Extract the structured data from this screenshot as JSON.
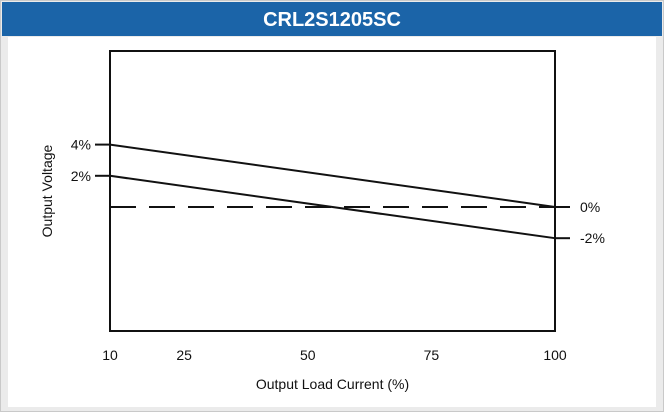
{
  "chart_data": {
    "type": "line",
    "title": "CRL2S1205SC",
    "xlabel": "Output Load Current (%)",
    "ylabel": "Output Voltage",
    "x_ticks": [
      10,
      25,
      50,
      75,
      100
    ],
    "xlim": [
      10,
      100
    ],
    "y_ticks_left": [
      {
        "label": "4%",
        "value": 4
      },
      {
        "label": "2%",
        "value": 2
      }
    ],
    "y_ticks_right": [
      {
        "label": "0%",
        "value": 0
      },
      {
        "label": "-2%",
        "value": -2
      }
    ],
    "ylim": [
      -7.95,
      10
    ],
    "series": [
      {
        "x": [
          10,
          100
        ],
        "y": [
          4,
          0
        ],
        "style": "solid"
      },
      {
        "x": [
          10,
          100
        ],
        "y": [
          2,
          -2
        ],
        "style": "solid"
      },
      {
        "x": [
          10,
          100
        ],
        "y": [
          0,
          0
        ],
        "style": "dashed"
      }
    ]
  }
}
